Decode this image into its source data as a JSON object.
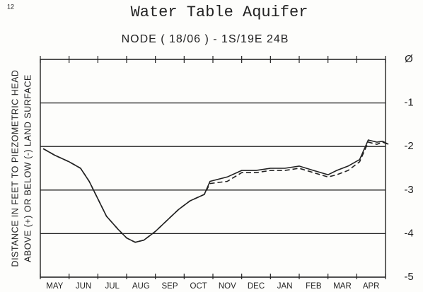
{
  "chart_data": {
    "type": "line",
    "page_number": "12",
    "title": "Water Table Aquifer",
    "subtitle": "NODE ( 18/06 ) - 1S/19E 24B",
    "ylabel": [
      "DISTANCE IN FEET TO PIEZOMETRIC HEAD",
      "ABOVE (+) OR BELOW (-) LAND SURFACE"
    ],
    "categories": [
      "MAY",
      "JUN",
      "JUL",
      "AUG",
      "SEP",
      "OCT",
      "NOV",
      "DEC",
      "JAN",
      "FEB",
      "MAR",
      "APR"
    ],
    "xlim": [
      0,
      12
    ],
    "xticks": [
      0,
      1,
      2,
      3,
      4,
      5,
      6,
      7,
      8,
      9,
      10,
      11,
      12
    ],
    "ylim": [
      -5,
      0
    ],
    "yticks": [
      {
        "value": 0,
        "label": "Ø"
      },
      -1,
      -2,
      -3,
      -4,
      -5
    ],
    "grid": true,
    "x": [
      0.1,
      0.5,
      1.0,
      1.4,
      1.7,
      2.0,
      2.3,
      2.7,
      3.0,
      3.3,
      3.6,
      4.0,
      4.4,
      4.8,
      5.2,
      5.7,
      5.9,
      6.5,
      7.0,
      7.5,
      8.0,
      8.5,
      9.0,
      9.5,
      10.0,
      10.3,
      10.7,
      11.1,
      11.4,
      11.7,
      11.9,
      12.1
    ],
    "series": [
      {
        "color": "#222222",
        "dash": false,
        "values": [
          -2.05,
          -2.2,
          -2.35,
          -2.5,
          -2.8,
          -3.2,
          -3.6,
          -3.9,
          -4.1,
          -4.2,
          -4.15,
          -3.95,
          -3.7,
          -3.45,
          -3.25,
          -3.1,
          -2.8,
          -2.7,
          -2.55,
          -2.55,
          -2.5,
          -2.5,
          -2.45,
          -2.55,
          -2.65,
          -2.55,
          -2.45,
          -2.3,
          -1.85,
          -1.9,
          -1.88,
          -1.95
        ]
      },
      {
        "color": "#222222",
        "dash": true,
        "values": [
          -2.05,
          -2.2,
          -2.35,
          -2.5,
          -2.8,
          -3.2,
          -3.6,
          -3.9,
          -4.1,
          -4.2,
          -4.15,
          -3.95,
          -3.7,
          -3.45,
          -3.25,
          -3.1,
          -2.85,
          -2.8,
          -2.6,
          -2.6,
          -2.55,
          -2.55,
          -2.5,
          -2.6,
          -2.7,
          -2.65,
          -2.55,
          -2.35,
          -1.9,
          -1.95,
          -1.9,
          -1.95
        ]
      }
    ]
  }
}
